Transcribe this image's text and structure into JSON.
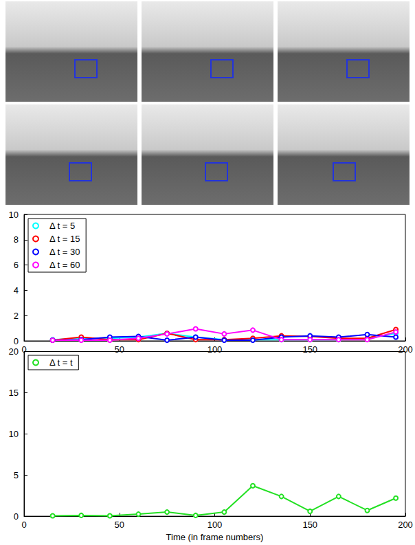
{
  "chart_data": [
    {
      "type": "line",
      "x": [
        15,
        30,
        45,
        60,
        75,
        90,
        105,
        120,
        135,
        150,
        165,
        180,
        195
      ],
      "xlim": [
        0,
        200
      ],
      "xticks": [
        0,
        50,
        100,
        150,
        200
      ],
      "ylim": [
        0,
        10
      ],
      "yticks": [
        0,
        2,
        4,
        6,
        8,
        10
      ],
      "legend": "top-left",
      "marker": "circle",
      "series": [
        {
          "name": "Δ t = 5",
          "color": "#00ffff",
          "values": [
            0.1,
            0.2,
            0.2,
            0.3,
            0.6,
            0.3,
            0.1,
            0.1,
            0.1,
            0.1,
            0.1,
            0.2,
            0.6
          ]
        },
        {
          "name": "Δ t = 15",
          "color": "#ff0000",
          "values": [
            0.05,
            0.3,
            0.1,
            0.1,
            0.6,
            0.1,
            0.1,
            0.2,
            0.4,
            0.35,
            0.2,
            0.2,
            0.9
          ]
        },
        {
          "name": "Δ t = 30",
          "color": "#0000ff",
          "values": [
            0.05,
            0.1,
            0.3,
            0.35,
            0.05,
            0.3,
            0.05,
            0.05,
            0.3,
            0.4,
            0.3,
            0.5,
            0.3
          ]
        },
        {
          "name": "Δ t = 60",
          "color": "#ff00ff",
          "values": [
            0.05,
            0.05,
            0.05,
            0.2,
            0.55,
            0.95,
            0.55,
            0.85,
            0.1,
            0.1,
            0.1,
            0.1,
            0.7
          ]
        }
      ]
    },
    {
      "type": "line",
      "x_label": "Time (in frame numbers)",
      "x": [
        15,
        30,
        45,
        60,
        75,
        90,
        105,
        120,
        135,
        150,
        165,
        180,
        195
      ],
      "xlim": [
        0,
        200
      ],
      "xticks": [
        0,
        50,
        100,
        150,
        200
      ],
      "ylim": [
        0,
        20
      ],
      "yticks": [
        0,
        5,
        10,
        15,
        20
      ],
      "legend": "top-left",
      "marker": "circle",
      "series": [
        {
          "name": "Δ t = t",
          "color": "#22e022",
          "values": [
            0.05,
            0.1,
            0.05,
            0.25,
            0.5,
            0.1,
            0.5,
            3.7,
            2.4,
            0.6,
            2.4,
            0.7,
            2.2
          ]
        }
      ]
    }
  ]
}
